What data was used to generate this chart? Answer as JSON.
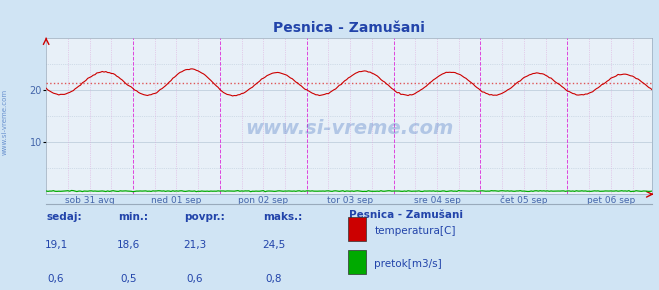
{
  "title": "Pesnica - Zamušani",
  "bg_color": "#d0e4f4",
  "plot_bg_color": "#e8f0f8",
  "grid_color": "#b8c8d8",
  "temp_color": "#cc0000",
  "flow_color": "#00aa00",
  "avg_line_color": "#dd4444",
  "avg_value": 21.3,
  "ylim": [
    0,
    30
  ],
  "yticks": [
    10,
    20
  ],
  "tick_color": "#4466aa",
  "title_color": "#2244aa",
  "days": [
    "sob 31 avg",
    "ned 01 sep",
    "pon 02 sep",
    "tor 03 sep",
    "sre 04 sep",
    "čet 05 sep",
    "pet 06 sep"
  ],
  "watermark": "www.si-vreme.com",
  "watermark_color": "#3366bb",
  "info_color": "#2244aa",
  "legend_title": "Pesnica - Zamušani",
  "legend_items": [
    "temperatura[C]",
    "pretok[m3/s]"
  ],
  "legend_colors": [
    "#cc0000",
    "#00aa00"
  ],
  "stats_labels": [
    "sedaj:",
    "min.:",
    "povpr.:",
    "maks.:"
  ],
  "stats_temp": [
    "19,1",
    "18,6",
    "21,3",
    "24,5"
  ],
  "stats_flow": [
    "0,6",
    "0,5",
    "0,6",
    "0,8"
  ],
  "n_points": 336,
  "pts_per_day": 48,
  "day_vline_color": "#dd44dd",
  "minor_vline_color": "#ddaadd"
}
